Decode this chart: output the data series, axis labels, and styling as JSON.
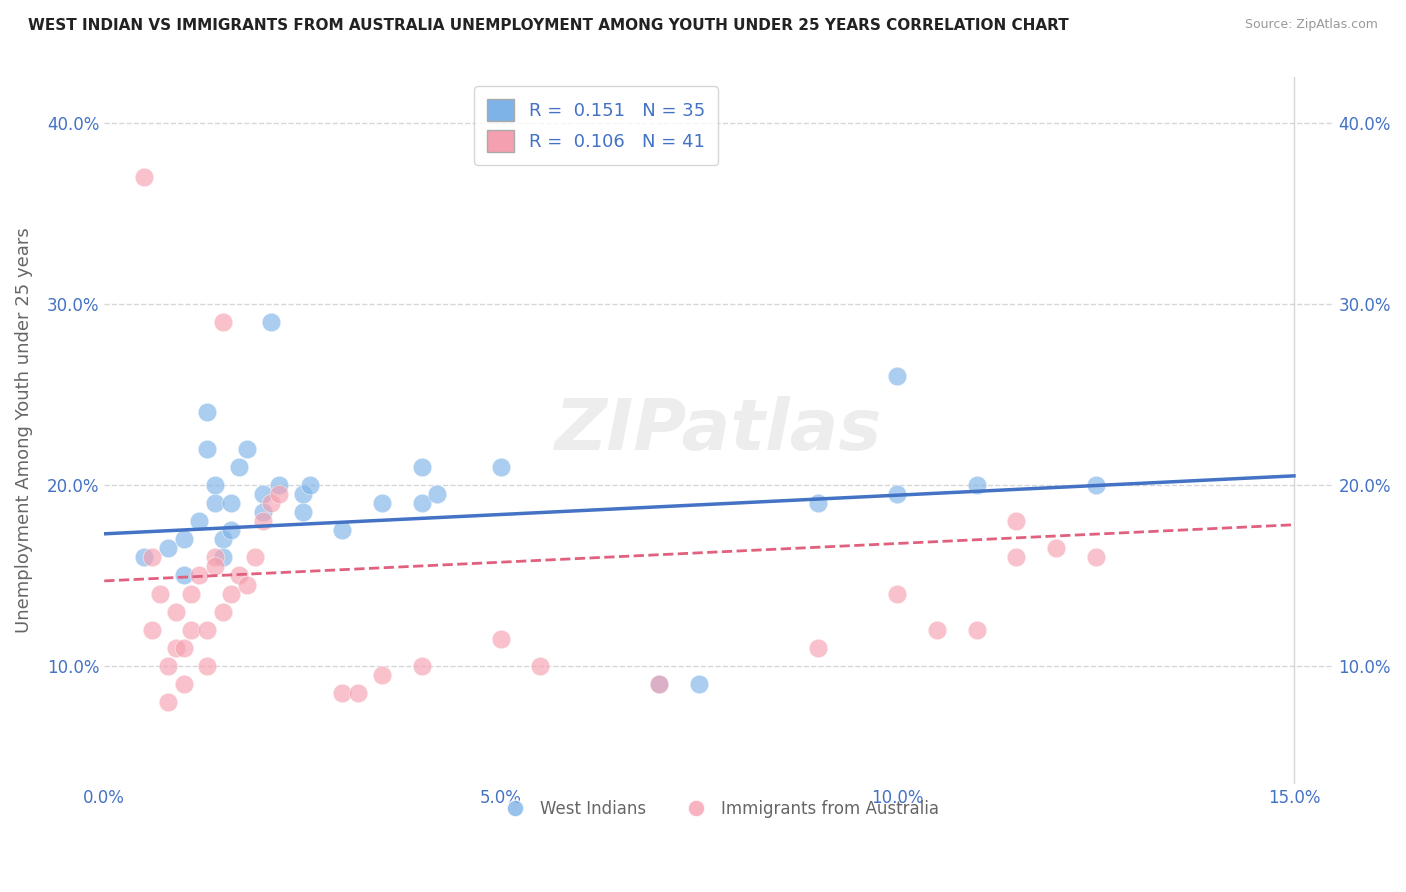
{
  "title": "WEST INDIAN VS IMMIGRANTS FROM AUSTRALIA UNEMPLOYMENT AMONG YOUTH UNDER 25 YEARS CORRELATION CHART",
  "source": "Source: ZipAtlas.com",
  "ylabel": "Unemployment Among Youth under 25 years",
  "xlim": [
    0.0,
    0.155
  ],
  "ylim": [
    0.035,
    0.425
  ],
  "legend1_label": "R =  0.151   N = 35",
  "legend2_label": "R =  0.106   N = 41",
  "legend_bottom": [
    "West Indians",
    "Immigrants from Australia"
  ],
  "blue_color": "#7EB3E8",
  "pink_color": "#F5A0B0",
  "line_blue": "#4472C4",
  "line_pink": "#E0607E",
  "blue_scatter_x": [
    0.005,
    0.008,
    0.01,
    0.01,
    0.012,
    0.013,
    0.013,
    0.014,
    0.014,
    0.015,
    0.015,
    0.016,
    0.016,
    0.017,
    0.018,
    0.02,
    0.02,
    0.021,
    0.022,
    0.025,
    0.025,
    0.026,
    0.03,
    0.035,
    0.04,
    0.04,
    0.042,
    0.05,
    0.07,
    0.075,
    0.09,
    0.1,
    0.1,
    0.125,
    0.11
  ],
  "blue_scatter_y": [
    0.16,
    0.165,
    0.15,
    0.17,
    0.18,
    0.22,
    0.24,
    0.19,
    0.2,
    0.17,
    0.16,
    0.175,
    0.19,
    0.21,
    0.22,
    0.185,
    0.195,
    0.29,
    0.2,
    0.185,
    0.195,
    0.2,
    0.175,
    0.19,
    0.19,
    0.21,
    0.195,
    0.21,
    0.09,
    0.09,
    0.19,
    0.26,
    0.195,
    0.2,
    0.2
  ],
  "pink_scatter_x": [
    0.005,
    0.006,
    0.006,
    0.007,
    0.008,
    0.008,
    0.009,
    0.009,
    0.01,
    0.01,
    0.011,
    0.011,
    0.012,
    0.013,
    0.013,
    0.014,
    0.014,
    0.015,
    0.015,
    0.016,
    0.017,
    0.018,
    0.019,
    0.02,
    0.021,
    0.022,
    0.03,
    0.032,
    0.035,
    0.04,
    0.05,
    0.055,
    0.07,
    0.09,
    0.1,
    0.105,
    0.11,
    0.115,
    0.115,
    0.12,
    0.125
  ],
  "pink_scatter_y": [
    0.37,
    0.16,
    0.12,
    0.14,
    0.08,
    0.1,
    0.11,
    0.13,
    0.09,
    0.11,
    0.12,
    0.14,
    0.15,
    0.1,
    0.12,
    0.16,
    0.155,
    0.29,
    0.13,
    0.14,
    0.15,
    0.145,
    0.16,
    0.18,
    0.19,
    0.195,
    0.085,
    0.085,
    0.095,
    0.1,
    0.115,
    0.1,
    0.09,
    0.11,
    0.14,
    0.12,
    0.12,
    0.18,
    0.16,
    0.165,
    0.16
  ],
  "blue_line_x": [
    0.0,
    0.15
  ],
  "blue_line_y": [
    0.173,
    0.205
  ],
  "pink_line_x": [
    0.0,
    0.15
  ],
  "pink_line_y": [
    0.147,
    0.178
  ],
  "background_color": "#FFFFFF",
  "grid_color": "#CCCCCC",
  "tick_color": "#4472C4",
  "label_color": "#666666"
}
